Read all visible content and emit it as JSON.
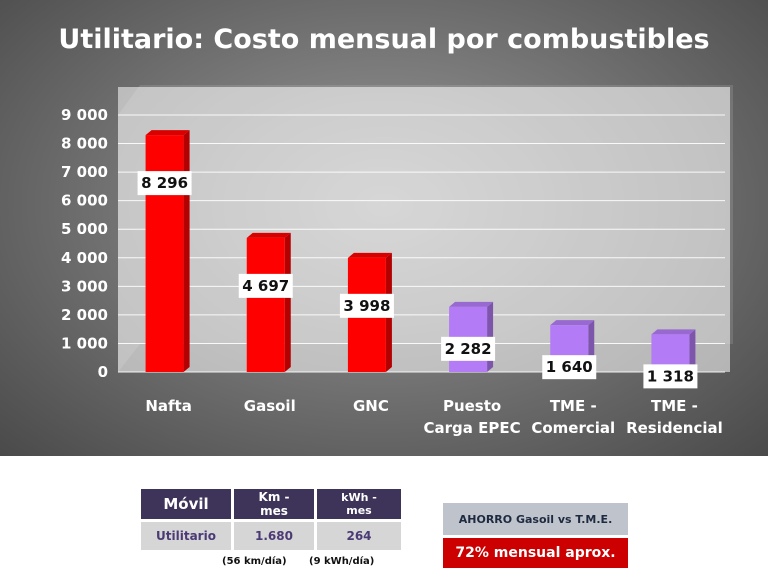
{
  "chart_data": {
    "type": "bar",
    "title": "Utilitario: Costo mensual por combustibles",
    "categories": [
      [
        "Nafta"
      ],
      [
        "Gasoil"
      ],
      [
        "GNC"
      ],
      [
        "Puesto",
        "Carga EPEC"
      ],
      [
        "TME -",
        "Comercial"
      ],
      [
        "TME -",
        "Residencial"
      ]
    ],
    "values": [
      8296,
      4697,
      3998,
      2282,
      1640,
      1318
    ],
    "value_labels": [
      "8 296",
      "4 697",
      "3 998",
      "2 282",
      "1 640",
      "1 318"
    ],
    "colors": [
      "#ff0000",
      "#ff0000",
      "#ff0000",
      "#b37bf5",
      "#b37bf5",
      "#b37bf5"
    ],
    "ylim": [
      0,
      9000
    ],
    "yticks": [
      0,
      1000,
      2000,
      3000,
      4000,
      5000,
      6000,
      7000,
      8000,
      9000
    ],
    "ytick_labels": [
      "0",
      "1 000",
      "2 000",
      "3 000",
      "4 000",
      "5 000",
      "6 000",
      "7 000",
      "8 000",
      "9 000"
    ],
    "grid": true,
    "legend": "none"
  },
  "table": {
    "headers": [
      "Móvil",
      "Km - mes",
      "kWh - mes"
    ],
    "row": [
      "Utilitario",
      "1.680",
      "264"
    ],
    "notes": [
      "(56 km/día)",
      "(9 kWh/día)"
    ]
  },
  "savings": {
    "title": "AHORRO Gasoil vs T.M.E.",
    "value": "72% mensual aprox."
  }
}
